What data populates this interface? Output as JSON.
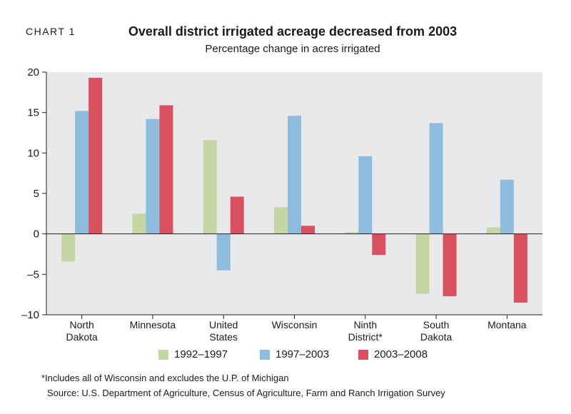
{
  "chart_label": "CHART 1",
  "footnote": "*Includes all of Wisconsin and excludes the U.P. of Michigan",
  "source": "Source: U.S. Department of Agriculture, Census of Agriculture, Farm and Ranch Irrigation Survey",
  "colors": {
    "s1": "#c5d6a4",
    "s2": "#8ebcde",
    "s3": "#d9505f",
    "plot_bg": "#e8e9ea"
  },
  "chart_data": {
    "type": "bar",
    "title": "Overall district irrigated acreage decreased from 2003",
    "subtitle": "Percentage change in acres irrigated",
    "categories": [
      [
        "North",
        "Dakota"
      ],
      [
        "Minnesota"
      ],
      [
        "United",
        "States"
      ],
      [
        "Wisconsin"
      ],
      [
        "Ninth",
        "District*"
      ],
      [
        "South",
        "Dakota"
      ],
      [
        "Montana"
      ]
    ],
    "series": [
      {
        "name": "1992–1997",
        "values": [
          -3.4,
          2.5,
          11.6,
          3.3,
          0.2,
          -7.4,
          0.8
        ]
      },
      {
        "name": "1997–2003",
        "values": [
          15.2,
          14.2,
          -4.5,
          14.6,
          9.6,
          13.7,
          6.7
        ]
      },
      {
        "name": "2003–2008",
        "values": [
          19.3,
          15.9,
          4.6,
          1.0,
          -2.6,
          -7.7,
          -8.5
        ]
      }
    ],
    "ylim": [
      -10,
      20
    ],
    "yticks": [
      20,
      15,
      10,
      5,
      0,
      -5,
      -10
    ],
    "ytick_labels": [
      "20",
      "15",
      "10",
      "5",
      "0",
      "–5",
      "–10"
    ]
  }
}
